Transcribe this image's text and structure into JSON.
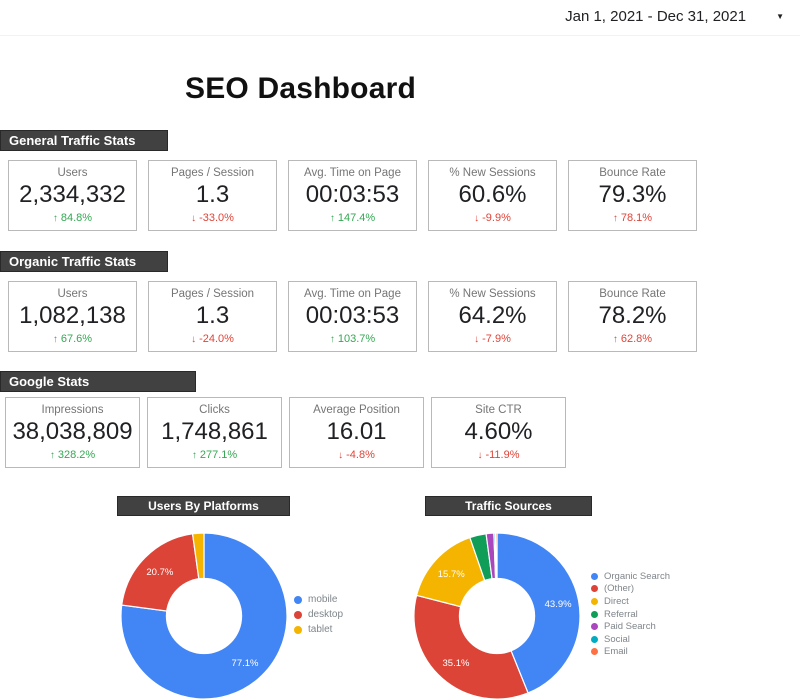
{
  "header": {
    "date_range": "Jan 1, 2021 - Dec 31, 2021"
  },
  "title": "SEO Dashboard",
  "theme": {
    "positive": "#34A853",
    "negative": "#E04438",
    "section_bar_bg": "#414141",
    "card_border": "#b9b9b9",
    "label_gray": "#757575"
  },
  "sections": [
    {
      "title": "General Traffic Stats",
      "cards": [
        {
          "label": "Users",
          "value": "2,334,332",
          "delta": "84.8%",
          "dir": "up",
          "color": "green"
        },
        {
          "label": "Pages / Session",
          "value": "1.3",
          "delta": "-33.0%",
          "dir": "down",
          "color": "red"
        },
        {
          "label": "Avg. Time on Page",
          "value": "00:03:53",
          "delta": "147.4%",
          "dir": "up",
          "color": "green"
        },
        {
          "label": "% New Sessions",
          "value": "60.6%",
          "delta": "-9.9%",
          "dir": "down",
          "color": "red"
        },
        {
          "label": "Bounce Rate",
          "value": "79.3%",
          "delta": "78.1%",
          "dir": "up",
          "color": "red"
        }
      ]
    },
    {
      "title": "Organic Traffic Stats",
      "cards": [
        {
          "label": "Users",
          "value": "1,082,138",
          "delta": "67.6%",
          "dir": "up",
          "color": "green"
        },
        {
          "label": "Pages / Session",
          "value": "1.3",
          "delta": "-24.0%",
          "dir": "down",
          "color": "red"
        },
        {
          "label": "Avg. Time on Page",
          "value": "00:03:53",
          "delta": "103.7%",
          "dir": "up",
          "color": "green"
        },
        {
          "label": "% New Sessions",
          "value": "64.2%",
          "delta": "-7.9%",
          "dir": "down",
          "color": "red"
        },
        {
          "label": "Bounce Rate",
          "value": "78.2%",
          "delta": "62.8%",
          "dir": "up",
          "color": "red"
        }
      ]
    },
    {
      "title": "Google Stats",
      "cards": [
        {
          "label": "Impressions",
          "value": "38,038,809",
          "delta": "328.2%",
          "dir": "up",
          "color": "green"
        },
        {
          "label": "Clicks",
          "value": "1,748,861",
          "delta": "277.1%",
          "dir": "up",
          "color": "green"
        },
        {
          "label": "Average Position",
          "value": "16.01",
          "delta": "-4.8%",
          "dir": "down",
          "color": "red"
        },
        {
          "label": "Site CTR",
          "value": "4.60%",
          "delta": "-11.9%",
          "dir": "down",
          "color": "red"
        }
      ]
    }
  ],
  "chart_data": [
    {
      "type": "pie",
      "subtype": "donut",
      "title": "Users By Platforms",
      "labels": [
        "mobile",
        "desktop",
        "tablet"
      ],
      "values": [
        77.1,
        20.7,
        2.2
      ],
      "colors": [
        "#4285F4",
        "#DB4437",
        "#F4B400"
      ],
      "hole": 0.46,
      "legend_position": "right",
      "slice_label_min_pct": 10
    },
    {
      "type": "pie",
      "subtype": "donut",
      "title": "Traffic Sources",
      "labels": [
        "Organic Search",
        "(Other)",
        "Direct",
        "Referral",
        "Paid Search",
        "Social",
        "Email"
      ],
      "values": [
        43.9,
        35.1,
        15.7,
        3.2,
        1.5,
        0.3,
        0.3
      ],
      "colors": [
        "#4285F4",
        "#DB4437",
        "#F4B400",
        "#0F9D58",
        "#AB47BC",
        "#00ACC1",
        "#FF7043"
      ],
      "hole": 0.46,
      "legend_position": "right",
      "slice_label_min_pct": 10
    }
  ]
}
